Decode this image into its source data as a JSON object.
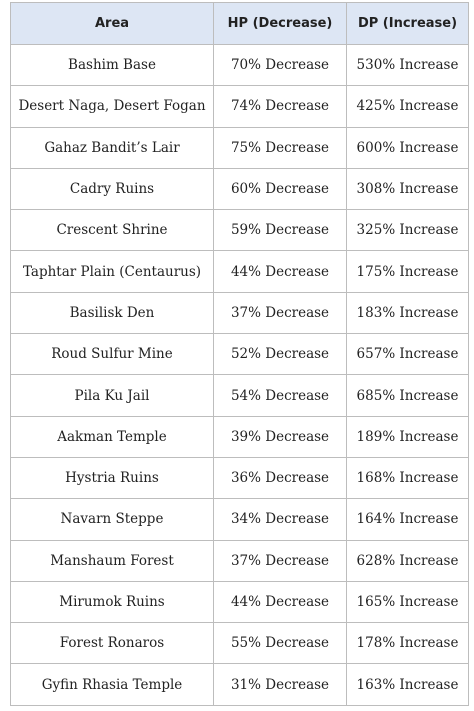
{
  "table": {
    "header": [
      "Area",
      "HP (Decrease)",
      "DP (Increase)"
    ],
    "rows": [
      [
        "Bashim Base",
        "70% Decrease",
        "530% Increase"
      ],
      [
        "Desert Naga, Desert Fogan",
        "74% Decrease",
        "425% Increase"
      ],
      [
        "Gahaz Bandit’s Lair",
        "75% Decrease",
        "600% Increase"
      ],
      [
        "Cadry Ruins",
        "60% Decrease",
        "308% Increase"
      ],
      [
        "Crescent Shrine",
        "59% Decrease",
        "325% Increase"
      ],
      [
        "Taphtar Plain (Centaurus)",
        "44% Decrease",
        "175% Increase"
      ],
      [
        "Basilisk Den",
        "37% Decrease",
        "183% Increase"
      ],
      [
        "Roud Sulfur Mine",
        "52% Decrease",
        "657% Increase"
      ],
      [
        "Pila Ku Jail",
        "54% Decrease",
        "685% Increase"
      ],
      [
        "Aakman Temple",
        "39% Decrease",
        "189% Increase"
      ],
      [
        "Hystria Ruins",
        "36% Decrease",
        "168% Increase"
      ],
      [
        "Navarn Steppe",
        "34% Decrease",
        "164% Increase"
      ],
      [
        "Manshaum Forest",
        "37% Decrease",
        "628% Increase"
      ],
      [
        "Mirumok Ruins",
        "44% Decrease",
        "165% Increase"
      ],
      [
        "Forest Ronaros",
        "55% Decrease",
        "178% Increase"
      ],
      [
        "Gyfin Rhasia Temple",
        "31% Decrease",
        "163% Increase"
      ]
    ]
  }
}
